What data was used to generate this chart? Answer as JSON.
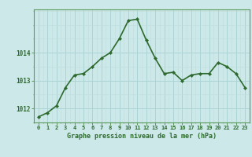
{
  "x": [
    0,
    1,
    2,
    3,
    4,
    5,
    6,
    7,
    8,
    9,
    10,
    11,
    12,
    13,
    14,
    15,
    16,
    17,
    18,
    19,
    20,
    21,
    22,
    23
  ],
  "y": [
    1011.7,
    1011.85,
    1012.1,
    1012.75,
    1013.2,
    1013.25,
    1013.5,
    1013.8,
    1014.0,
    1014.5,
    1015.15,
    1015.2,
    1014.45,
    1013.8,
    1013.25,
    1013.3,
    1013.0,
    1013.2,
    1013.25,
    1013.25,
    1013.65,
    1013.5,
    1013.25,
    1012.75
  ],
  "line_color": "#2d6a2d",
  "marker": "D",
  "marker_size": 2.2,
  "bg_color": "#cde8e8",
  "grid_major_color": "#add4d4",
  "grid_minor_color": "#bddede",
  "axis_label_color": "#2d6a2d",
  "tick_label_color": "#2d6a2d",
  "xlabel": "Graphe pression niveau de la mer (hPa)",
  "ylim": [
    1011.5,
    1015.55
  ],
  "yticks": [
    1012,
    1013,
    1014
  ],
  "xticks": [
    0,
    1,
    2,
    3,
    4,
    5,
    6,
    7,
    8,
    9,
    10,
    11,
    12,
    13,
    14,
    15,
    16,
    17,
    18,
    19,
    20,
    21,
    22,
    23
  ],
  "line_width": 1.2,
  "spine_color": "#5a9a5a",
  "tick_color": "#5a9a5a"
}
